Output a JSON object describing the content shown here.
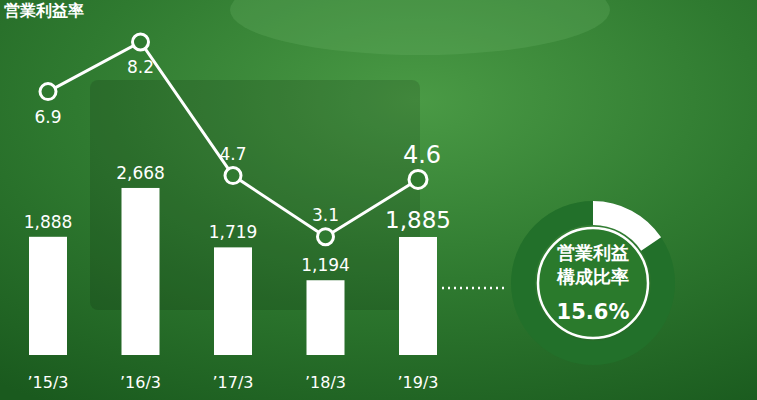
{
  "chart_data": [
    {
      "type": "bar",
      "title": "営業利益率",
      "categories": [
        "’15/3",
        "’16/3",
        "’17/3",
        "’18/3",
        "’19/3"
      ],
      "ylim": [
        0,
        5670
      ],
      "y2lim": [
        0,
        9.3
      ],
      "tick_labels": "x",
      "grid": false,
      "series": [
        {
          "type": "bar",
          "color": "#ffffff",
          "values": [
            1888,
            2668,
            1719,
            1194,
            1885
          ],
          "value_labels": [
            "1,888",
            "2,668",
            "1,719",
            "1,194",
            "1,885"
          ]
        },
        {
          "type": "line",
          "axis": "y2",
          "color": "#ffffff",
          "marker": "circle",
          "data_labels": true,
          "values": [
            6.9,
            8.2,
            4.7,
            3.1,
            4.6
          ]
        }
      ]
    },
    {
      "type": "pie",
      "title": "営業利益\n構成比率",
      "values": [
        15.6
      ],
      "value_labels": [
        "15.6%"
      ],
      "colors": [
        "#ffffff"
      ],
      "data_labels": true
    }
  ]
}
